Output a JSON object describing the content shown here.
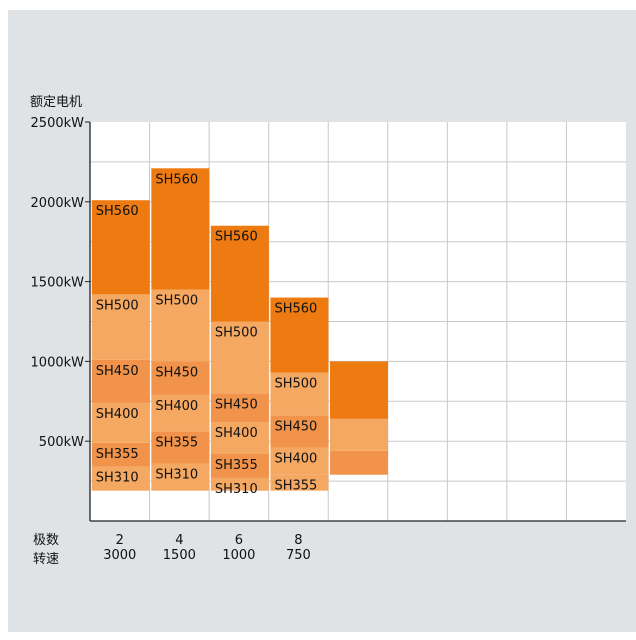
{
  "chart_data": {
    "type": "bar",
    "stacked": true,
    "y_title": "额定电机",
    "x_row1_label": "极数",
    "x_row2_label": "转速",
    "y_ticks": [
      "500kW",
      "1000kW",
      "1500kW",
      "2000kW",
      "2500kW"
    ],
    "y_tick_values": [
      500,
      1000,
      1500,
      2000,
      2500
    ],
    "ylim": [
      0,
      2500
    ],
    "grid": true,
    "colors": {
      "dark": "#ed7b12",
      "light": "#f4a862",
      "mid": "#f1934a"
    },
    "categories": [
      {
        "pole": "2",
        "speed": "3000",
        "segments": [
          {
            "label": "SH310",
            "from": 190,
            "to": 340,
            "tone": "light"
          },
          {
            "label": "SH355",
            "from": 340,
            "to": 490,
            "tone": "mid"
          },
          {
            "label": "SH400",
            "from": 490,
            "to": 740,
            "tone": "light"
          },
          {
            "label": "SH450",
            "from": 740,
            "to": 1010,
            "tone": "mid"
          },
          {
            "label": "SH500",
            "from": 1010,
            "to": 1420,
            "tone": "light"
          },
          {
            "label": "SH560",
            "from": 1420,
            "to": 2010,
            "tone": "dark"
          }
        ]
      },
      {
        "pole": "4",
        "speed": "1500",
        "segments": [
          {
            "label": "SH310",
            "from": 190,
            "to": 360,
            "tone": "light"
          },
          {
            "label": "SH355",
            "from": 360,
            "to": 560,
            "tone": "mid"
          },
          {
            "label": "SH400",
            "from": 560,
            "to": 790,
            "tone": "light"
          },
          {
            "label": "SH450",
            "from": 790,
            "to": 1000,
            "tone": "mid"
          },
          {
            "label": "SH500",
            "from": 1000,
            "to": 1450,
            "tone": "light"
          },
          {
            "label": "SH560",
            "from": 1450,
            "to": 2210,
            "tone": "dark"
          }
        ]
      },
      {
        "pole": "6",
        "speed": "1000",
        "segments": [
          {
            "label": "SH310",
            "from": 190,
            "to": 270,
            "tone": "light"
          },
          {
            "label": "SH355",
            "from": 270,
            "to": 420,
            "tone": "mid"
          },
          {
            "label": "SH400",
            "from": 420,
            "to": 620,
            "tone": "light"
          },
          {
            "label": "SH450",
            "from": 620,
            "to": 800,
            "tone": "mid"
          },
          {
            "label": "SH500",
            "from": 800,
            "to": 1250,
            "tone": "light"
          },
          {
            "label": "SH560",
            "from": 1250,
            "to": 1850,
            "tone": "dark"
          }
        ]
      },
      {
        "pole": "8",
        "speed": "750",
        "segments": [
          {
            "label": "SH355",
            "from": 190,
            "to": 290,
            "tone": "light"
          },
          {
            "label": "SH400",
            "from": 290,
            "to": 460,
            "tone": "light"
          },
          {
            "label": "SH450",
            "from": 460,
            "to": 660,
            "tone": "mid"
          },
          {
            "label": "SH500",
            "from": 660,
            "to": 930,
            "tone": "light"
          },
          {
            "label": "SH560",
            "from": 930,
            "to": 1400,
            "tone": "dark"
          }
        ]
      },
      {
        "pole": "",
        "speed": "",
        "segments": [
          {
            "label": "",
            "from": 290,
            "to": 440,
            "tone": "mid"
          },
          {
            "label": "",
            "from": 440,
            "to": 640,
            "tone": "light"
          },
          {
            "label": "",
            "from": 640,
            "to": 1000,
            "tone": "dark"
          }
        ]
      }
    ]
  }
}
